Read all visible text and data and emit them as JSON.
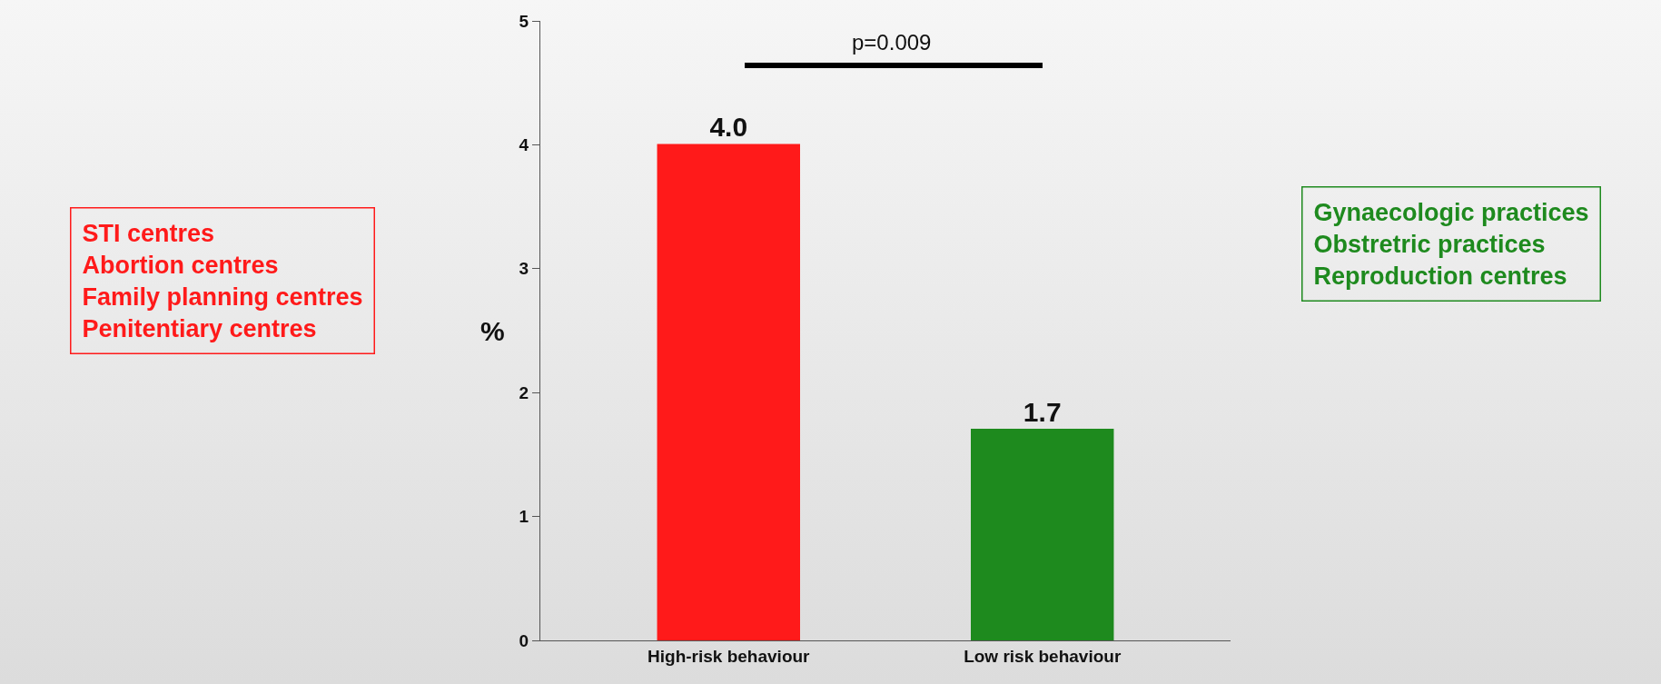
{
  "chart_data": {
    "type": "bar",
    "categories": [
      "High-risk behaviour",
      "Low risk behaviour"
    ],
    "values": [
      4.0,
      1.7
    ],
    "value_labels": [
      "4.0",
      "1.7"
    ],
    "colors": [
      "#ff1a1a",
      "#1e8a1e"
    ],
    "ylim": [
      0,
      5
    ],
    "yticks": [
      0,
      1,
      2,
      3,
      4,
      5
    ],
    "ylabel": "%",
    "grid": false,
    "legend": false,
    "annotations": [
      "p=0.009",
      "STI centres\nAbortion centres\nFamily planning centres\nPenitentiary centres",
      "Gynaecologic practices\nObstretric practices\nReproduction centres"
    ]
  }
}
